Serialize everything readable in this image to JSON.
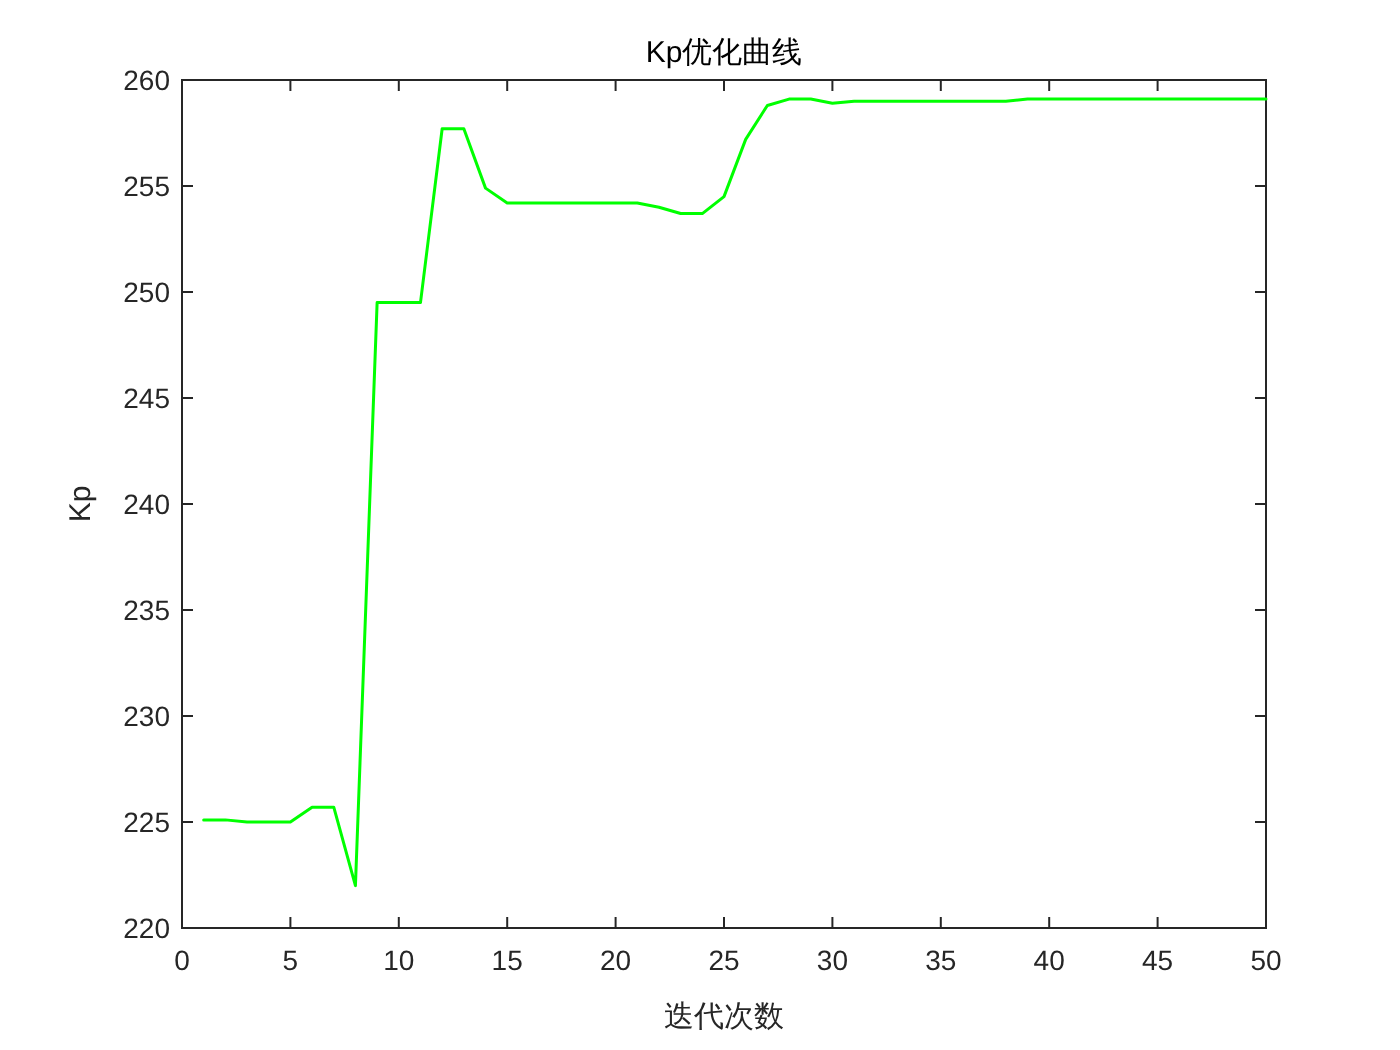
{
  "chart_data": {
    "type": "line",
    "title": "Kp优化曲线",
    "xlabel": "迭代次数",
    "ylabel": "Kp",
    "x": [
      1,
      2,
      3,
      4,
      5,
      6,
      7,
      8,
      9,
      10,
      11,
      12,
      13,
      14,
      15,
      16,
      17,
      18,
      19,
      20,
      21,
      22,
      23,
      24,
      25,
      26,
      27,
      28,
      29,
      30,
      31,
      32,
      33,
      34,
      35,
      36,
      37,
      38,
      39,
      40,
      41,
      42,
      43,
      44,
      45,
      46,
      47,
      48,
      49,
      50
    ],
    "values": [
      225.1,
      225.1,
      225.0,
      225.0,
      225.0,
      225.7,
      225.7,
      222.0,
      249.5,
      249.5,
      249.5,
      257.7,
      257.7,
      254.9,
      254.2,
      254.2,
      254.2,
      254.2,
      254.2,
      254.2,
      254.2,
      254.0,
      253.7,
      253.7,
      254.5,
      257.2,
      258.8,
      259.1,
      259.1,
      258.9,
      259.0,
      259.0,
      259.0,
      259.0,
      259.0,
      259.0,
      259.0,
      259.0,
      259.1,
      259.1,
      259.1,
      259.1,
      259.1,
      259.1,
      259.1,
      259.1,
      259.1,
      259.1,
      259.1,
      259.1
    ],
    "color": "#00ff00",
    "xlim": [
      0,
      50
    ],
    "ylim": [
      220,
      260
    ],
    "xticks": [
      0,
      5,
      10,
      15,
      20,
      25,
      30,
      35,
      40,
      45,
      50
    ],
    "yticks": [
      220,
      225,
      230,
      235,
      240,
      245,
      250,
      255,
      260
    ]
  }
}
